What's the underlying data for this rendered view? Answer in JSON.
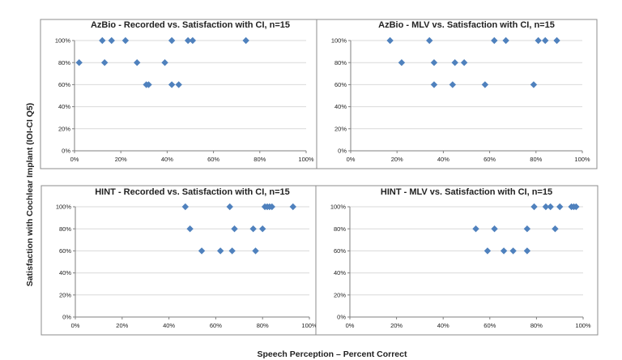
{
  "ylabel": "Satisfaction with Cochlear Implant (IOI-CI Q5)",
  "xlabel": "Speech Perception – Percent Correct",
  "marker_color": "#4f81bd",
  "chart_data": [
    {
      "type": "scatter",
      "title": "AzBio - Recorded vs. Satisfaction with CI, n=15",
      "xlim": [
        0,
        100
      ],
      "ylim": [
        0,
        100
      ],
      "x_ticks": [
        "0%",
        "20%",
        "40%",
        "60%",
        "80%",
        "100%"
      ],
      "y_ticks": [
        "0%",
        "20%",
        "40%",
        "60%",
        "80%",
        "100%"
      ],
      "grid": "horizontal",
      "points": [
        {
          "x": 2,
          "y": 80
        },
        {
          "x": 12,
          "y": 100
        },
        {
          "x": 13,
          "y": 80
        },
        {
          "x": 16,
          "y": 100
        },
        {
          "x": 22,
          "y": 100
        },
        {
          "x": 27,
          "y": 80
        },
        {
          "x": 31,
          "y": 60
        },
        {
          "x": 32,
          "y": 60
        },
        {
          "x": 39,
          "y": 80
        },
        {
          "x": 42,
          "y": 100
        },
        {
          "x": 42,
          "y": 60
        },
        {
          "x": 45,
          "y": 60
        },
        {
          "x": 49,
          "y": 100
        },
        {
          "x": 51,
          "y": 100
        },
        {
          "x": 74,
          "y": 100
        }
      ]
    },
    {
      "type": "scatter",
      "title": "AzBio - MLV vs. Satisfaction with CI, n=15",
      "xlim": [
        0,
        100
      ],
      "ylim": [
        0,
        100
      ],
      "x_ticks": [
        "0%",
        "20%",
        "40%",
        "60%",
        "80%",
        "100%"
      ],
      "y_ticks": [
        "0%",
        "20%",
        "40%",
        "60%",
        "80%",
        "100%"
      ],
      "grid": "horizontal",
      "points": [
        {
          "x": 17,
          "y": 100
        },
        {
          "x": 22,
          "y": 80
        },
        {
          "x": 34,
          "y": 100
        },
        {
          "x": 36,
          "y": 80
        },
        {
          "x": 36,
          "y": 60
        },
        {
          "x": 44,
          "y": 60
        },
        {
          "x": 45,
          "y": 80
        },
        {
          "x": 49,
          "y": 80
        },
        {
          "x": 58,
          "y": 60
        },
        {
          "x": 62,
          "y": 100
        },
        {
          "x": 67,
          "y": 100
        },
        {
          "x": 79,
          "y": 60
        },
        {
          "x": 81,
          "y": 100
        },
        {
          "x": 84,
          "y": 100
        },
        {
          "x": 89,
          "y": 100
        }
      ]
    },
    {
      "type": "scatter",
      "title": "HINT - Recorded vs. Satisfaction with CI, n=15",
      "xlim": [
        0,
        100
      ],
      "ylim": [
        0,
        100
      ],
      "x_ticks": [
        "0%",
        "20%",
        "40%",
        "60%",
        "80%",
        "100%"
      ],
      "y_ticks": [
        "0%",
        "20%",
        "40%",
        "60%",
        "80%",
        "100%"
      ],
      "grid": "horizontal",
      "points": [
        {
          "x": 47,
          "y": 100
        },
        {
          "x": 49,
          "y": 80
        },
        {
          "x": 54,
          "y": 60
        },
        {
          "x": 62,
          "y": 60
        },
        {
          "x": 66,
          "y": 100
        },
        {
          "x": 67,
          "y": 60
        },
        {
          "x": 68,
          "y": 80
        },
        {
          "x": 76,
          "y": 80
        },
        {
          "x": 77,
          "y": 60
        },
        {
          "x": 80,
          "y": 80
        },
        {
          "x": 81,
          "y": 100
        },
        {
          "x": 82,
          "y": 100
        },
        {
          "x": 83,
          "y": 100
        },
        {
          "x": 84,
          "y": 100
        },
        {
          "x": 93,
          "y": 100
        }
      ]
    },
    {
      "type": "scatter",
      "title": "HINT - MLV vs. Satisfaction with CI, n=15",
      "xlim": [
        0,
        100
      ],
      "ylim": [
        0,
        100
      ],
      "x_ticks": [
        "0%",
        "20%",
        "40%",
        "60%",
        "80%",
        "100%"
      ],
      "y_ticks": [
        "0%",
        "20%",
        "40%",
        "60%",
        "80%",
        "100%"
      ],
      "grid": "horizontal",
      "points": [
        {
          "x": 54,
          "y": 80
        },
        {
          "x": 59,
          "y": 60
        },
        {
          "x": 62,
          "y": 80
        },
        {
          "x": 66,
          "y": 60
        },
        {
          "x": 70,
          "y": 60
        },
        {
          "x": 76,
          "y": 80
        },
        {
          "x": 76,
          "y": 60
        },
        {
          "x": 79,
          "y": 100
        },
        {
          "x": 84,
          "y": 100
        },
        {
          "x": 86,
          "y": 100
        },
        {
          "x": 88,
          "y": 80
        },
        {
          "x": 90,
          "y": 100
        },
        {
          "x": 95,
          "y": 100
        },
        {
          "x": 96,
          "y": 100
        },
        {
          "x": 97,
          "y": 100
        }
      ]
    }
  ]
}
